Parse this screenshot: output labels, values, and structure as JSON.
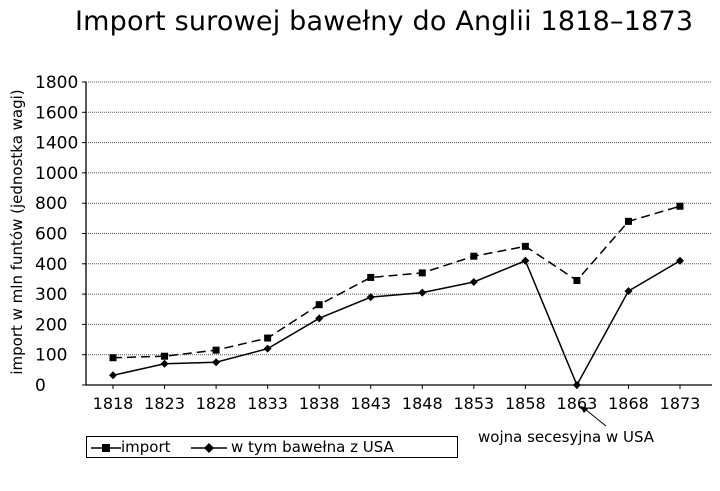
{
  "chart_data": {
    "type": "line",
    "title": "Import surowej bawełny do Anglii 1818–1873",
    "ylabel": "import w mln funtów (jednostka wagi)",
    "xlabel": "",
    "categories": [
      "1818",
      "1823",
      "1828",
      "1833",
      "1838",
      "1843",
      "1848",
      "1853",
      "1858",
      "1863",
      "1868",
      "1873"
    ],
    "y_ticks": [
      "1800",
      "1600",
      "1400",
      "1000",
      "800",
      "600",
      "400",
      "300",
      "200",
      "100",
      "0"
    ],
    "series": [
      {
        "name": "import",
        "style": "dashed",
        "marker": "square",
        "color": "#000000",
        "values": [
          90,
          95,
          115,
          155,
          265,
          355,
          370,
          450,
          515,
          345,
          680,
          780
        ]
      },
      {
        "name": "w tym bawełna z USA",
        "style": "solid",
        "marker": "diamond",
        "color": "#000000",
        "values": [
          32,
          70,
          75,
          120,
          220,
          290,
          305,
          340,
          420,
          0,
          310,
          420
        ]
      }
    ],
    "grid": true,
    "legend_position": "bottom-left",
    "annotations": [
      {
        "text": "wojna secesyjna w USA",
        "x": "1863"
      }
    ]
  }
}
